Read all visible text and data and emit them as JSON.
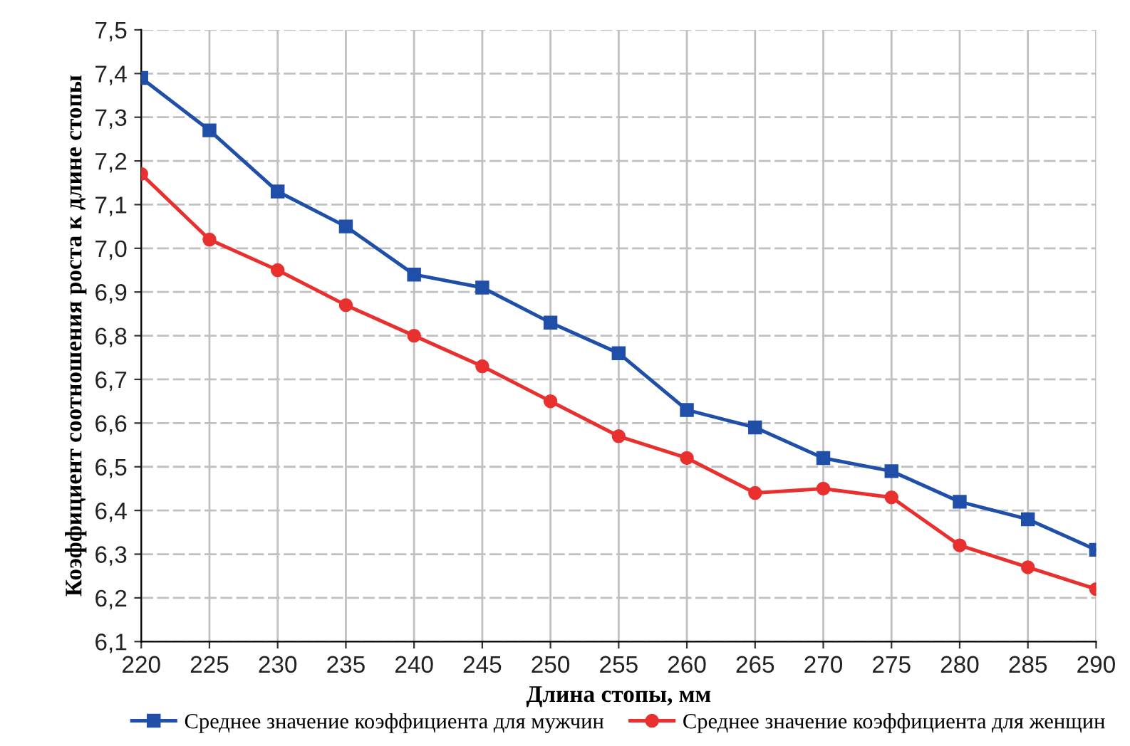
{
  "chart_data": {
    "type": "line",
    "xlabel": "Длина стопы, мм",
    "ylabel": "Коэффициент соотношения роста к длине стопы",
    "x": [
      220,
      225,
      230,
      235,
      240,
      245,
      250,
      255,
      260,
      265,
      270,
      275,
      280,
      285,
      290
    ],
    "series": [
      {
        "name": "Среднее значение коэффициента для мужчин",
        "color": "#1f4fa8",
        "marker": "square",
        "values": [
          7.39,
          7.27,
          7.13,
          7.05,
          6.94,
          6.91,
          6.83,
          6.76,
          6.63,
          6.59,
          6.52,
          6.49,
          6.42,
          6.38,
          6.31
        ]
      },
      {
        "name": "Среднее значение коэффициента для женщин",
        "color": "#e8302e",
        "marker": "circle",
        "values": [
          7.17,
          7.02,
          6.95,
          6.87,
          6.8,
          6.73,
          6.65,
          6.57,
          6.52,
          6.44,
          6.45,
          6.43,
          6.32,
          6.27,
          6.22
        ]
      }
    ],
    "xlim": [
      220,
      290
    ],
    "xticks": [
      220,
      225,
      230,
      235,
      240,
      245,
      250,
      255,
      260,
      265,
      270,
      275,
      280,
      285,
      290
    ],
    "ylim": [
      6.1,
      7.5
    ],
    "yticks": [
      {
        "value": 6.1,
        "label": "6,1"
      },
      {
        "value": 6.2,
        "label": "6,2"
      },
      {
        "value": 6.3,
        "label": "6,3"
      },
      {
        "value": 6.4,
        "label": "6,4"
      },
      {
        "value": 6.5,
        "label": "6,5"
      },
      {
        "value": 6.6,
        "label": "6,6"
      },
      {
        "value": 6.7,
        "label": "6,7"
      },
      {
        "value": 6.8,
        "label": "6,8"
      },
      {
        "value": 6.9,
        "label": "6,9"
      },
      {
        "value": 7.0,
        "label": "7,0"
      },
      {
        "value": 7.1,
        "label": "7,1"
      },
      {
        "value": 7.2,
        "label": "7,2"
      },
      {
        "value": 7.3,
        "label": "7,3"
      },
      {
        "value": 7.4,
        "label": "7,4"
      },
      {
        "value": 7.5,
        "label": "7,5"
      }
    ],
    "grid": true,
    "legend": "bottom",
    "line_style": "solid"
  }
}
